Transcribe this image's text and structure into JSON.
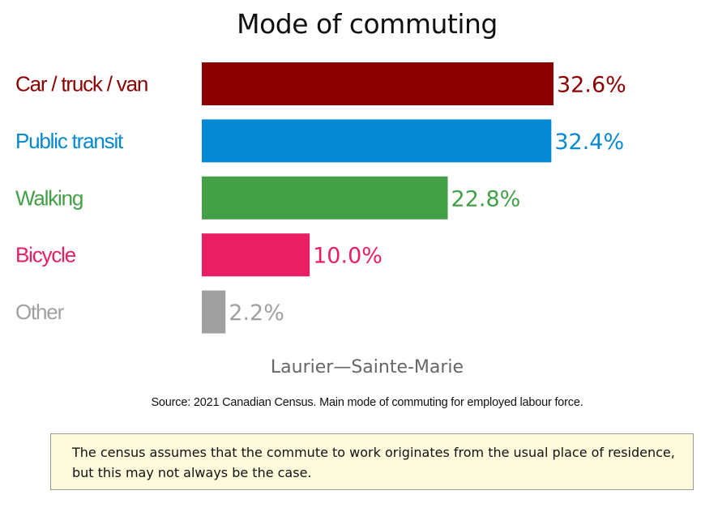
{
  "chart_data": {
    "type": "bar",
    "orientation": "horizontal",
    "title": "Mode of commuting",
    "subtitle": "Laurier—Sainte-Marie",
    "categories": [
      "Car / truck / van",
      "Public transit",
      "Walking",
      "Bicycle",
      "Other"
    ],
    "values": [
      32.6,
      32.4,
      22.8,
      10.0,
      2.2
    ],
    "value_labels": [
      "32.6%",
      "32.4%",
      "22.8%",
      "10.0%",
      "2.2%"
    ],
    "colors": [
      "#8b0000",
      "#0388d1",
      "#43a047",
      "#e91e63",
      "#a0a0a0"
    ],
    "xlim": [
      0,
      33
    ],
    "grid": false,
    "legend": "none"
  },
  "source": "Source: 2021 Canadian Census. Main mode of commuting for employed labour force.",
  "note": "The census assumes that the commute to work originates from the usual place of residence, but this may not always be the case."
}
